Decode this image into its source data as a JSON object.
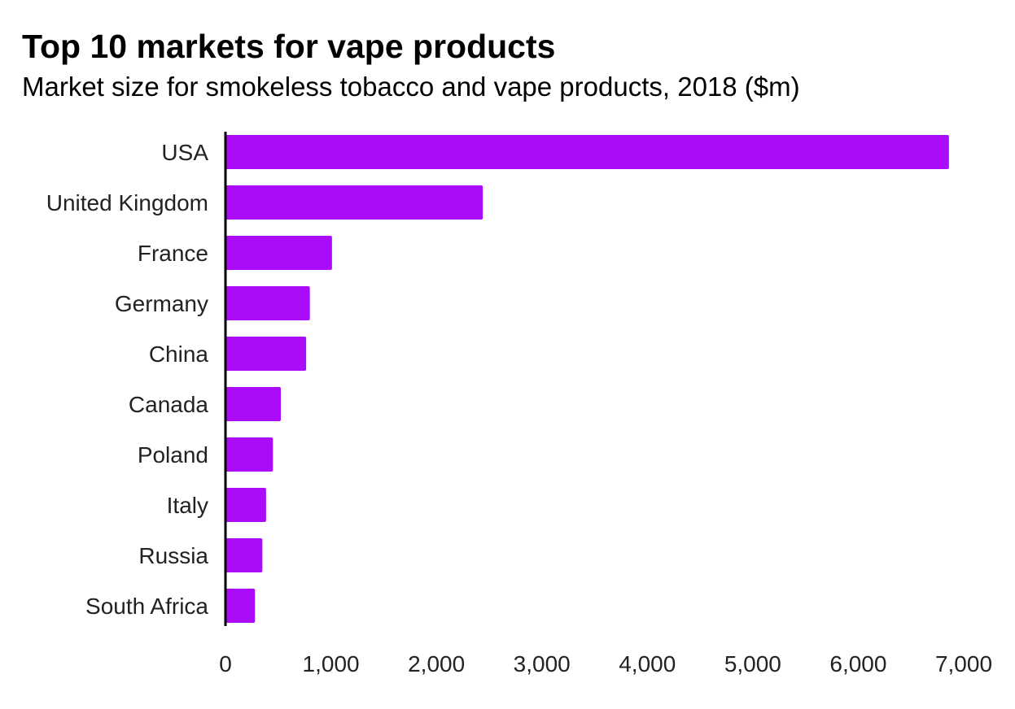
{
  "chart_data": {
    "type": "bar",
    "orientation": "horizontal",
    "title": "Top 10 markets for vape products",
    "subtitle": "Market size for smokeless tobacco and vape products, 2018 ($m)",
    "categories": [
      "USA",
      "United Kingdom",
      "France",
      "Germany",
      "China",
      "Canada",
      "Poland",
      "Italy",
      "Russia",
      "South Africa"
    ],
    "values": [
      6860,
      2440,
      1010,
      800,
      765,
      525,
      450,
      385,
      350,
      280
    ],
    "xlim": [
      0,
      7000
    ],
    "xticks": [
      0,
      1000,
      2000,
      3000,
      4000,
      5000,
      6000,
      7000
    ],
    "xtick_labels": [
      "0",
      "1,000",
      "2,000",
      "3,000",
      "4,000",
      "5,000",
      "6,000",
      "7,000"
    ],
    "xlabel": "",
    "ylabel": "",
    "grid": false,
    "bar_color": "#aa0cf9"
  }
}
